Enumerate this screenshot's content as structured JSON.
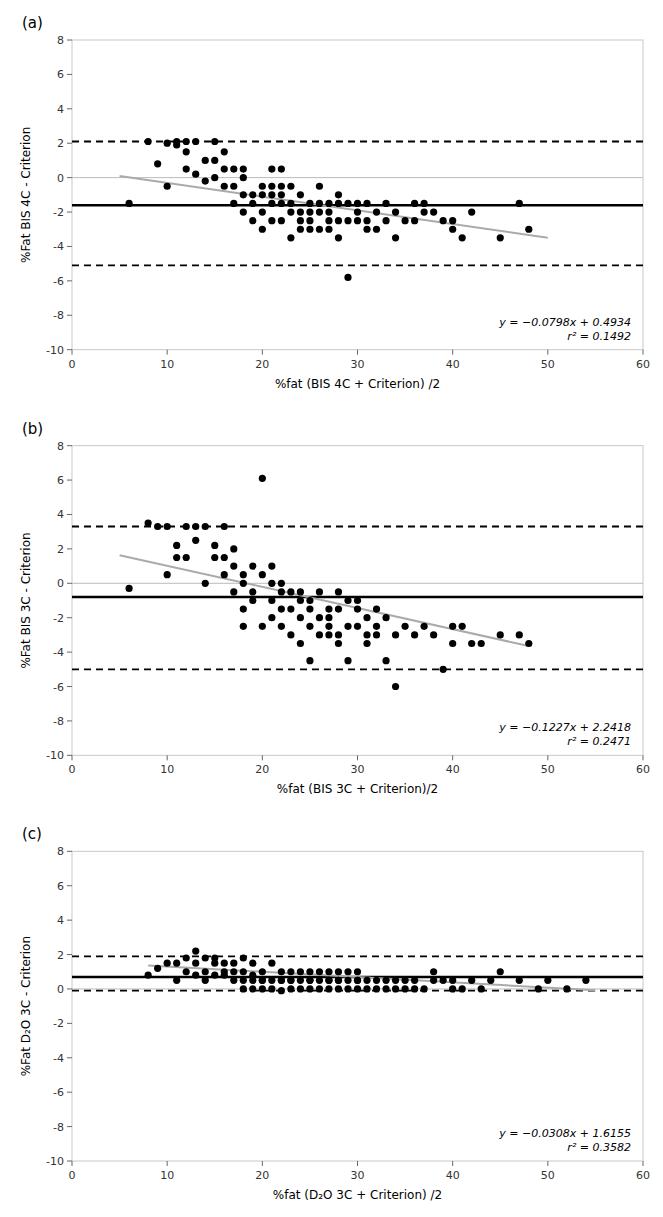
{
  "chart_data": [
    {
      "type": "scatter",
      "title": "(a)",
      "xlabel": "%fat (BIS 4C + Criterion) /2",
      "ylabel": "%Fat BIS 4C - Criterion",
      "annotation": "y = −0.0798x + 0.4934\nr² = 0.1492",
      "xlim": [
        0,
        60
      ],
      "ylim": [
        -10,
        8
      ],
      "xticks": [
        0,
        10,
        20,
        30,
        40,
        50,
        60
      ],
      "yticks": [
        -10,
        -8,
        -6,
        -4,
        -2,
        0,
        2,
        4,
        6,
        8
      ],
      "grid": false,
      "reference_lines": [
        {
          "value": 0,
          "color": "#bbbbbb",
          "line_style": "solid"
        },
        {
          "value": -1.6,
          "color": "#000000",
          "line_style": "solid"
        },
        {
          "value": 2.1,
          "color": "#000000",
          "line_style": "dashed"
        },
        {
          "value": -5.1,
          "color": "#000000",
          "line_style": "dashed"
        }
      ],
      "series": [
        {
          "type": "scatter",
          "color": "#000000",
          "marker": "circle",
          "x": [
            6,
            8,
            9,
            10,
            10,
            11,
            11,
            12,
            12,
            12,
            13,
            13,
            14,
            14,
            15,
            15,
            15,
            16,
            16,
            16,
            17,
            17,
            17,
            18,
            18,
            18,
            18,
            19,
            19,
            19,
            20,
            20,
            20,
            20,
            21,
            21,
            21,
            21,
            21,
            22,
            22,
            22,
            22,
            22,
            23,
            23,
            23,
            23,
            24,
            24,
            24,
            24,
            25,
            25,
            25,
            25,
            26,
            26,
            26,
            26,
            27,
            27,
            27,
            27,
            28,
            28,
            28,
            28,
            29,
            29,
            29,
            30,
            30,
            30,
            31,
            31,
            31,
            32,
            32,
            33,
            33,
            34,
            34,
            35,
            36,
            36,
            37,
            37,
            38,
            39,
            40,
            40,
            41,
            42,
            45,
            47,
            48
          ],
          "values": [
            -1.5,
            2.1,
            0.8,
            -0.5,
            2.0,
            2.1,
            1.9,
            1.5,
            0.5,
            2.1,
            2.1,
            0.2,
            -0.2,
            1.0,
            1.0,
            2.1,
            0.0,
            -0.5,
            0.5,
            1.5,
            -0.5,
            -1.5,
            0.5,
            -1.0,
            -2.0,
            0.0,
            0.5,
            -1.0,
            -2.5,
            -1.5,
            -3.0,
            -2.0,
            -1.0,
            -0.5,
            -1.5,
            -2.5,
            -1.0,
            0.5,
            -0.5,
            -1.5,
            -2.5,
            -0.5,
            0.5,
            -1.0,
            -2.0,
            -3.5,
            -1.5,
            -0.5,
            -2.0,
            -1.0,
            -2.5,
            -3.0,
            -1.5,
            -2.0,
            -3.0,
            -2.5,
            -2.0,
            -3.0,
            -1.5,
            -0.5,
            -2.5,
            -1.5,
            -2.0,
            -3.0,
            -1.5,
            -2.5,
            -3.5,
            -1.0,
            -2.5,
            -1.5,
            -5.8,
            -2.0,
            -1.5,
            -2.5,
            -2.5,
            -3.0,
            -1.5,
            -2.0,
            -3.0,
            -2.5,
            -1.5,
            -2.0,
            -3.5,
            -2.5,
            -2.5,
            -1.5,
            -2.0,
            -1.5,
            -2.0,
            -2.5,
            -3.0,
            -2.5,
            -3.5,
            -2.0,
            -3.5,
            -1.5,
            -3.0
          ]
        },
        {
          "type": "line",
          "color": "#aaaaaa",
          "line_style": "solid",
          "x": [
            5,
            50
          ],
          "values": [
            0.0944,
            -3.4966
          ]
        }
      ]
    },
    {
      "type": "scatter",
      "title": "(b)",
      "xlabel": "%fat (BIS 3C + Criterion)/2",
      "ylabel": "%Fat BIS 3C - Criterion",
      "annotation": "y = −0.1227x + 2.2418\nr² = 0.2471",
      "xlim": [
        0,
        60
      ],
      "ylim": [
        -10,
        8
      ],
      "xticks": [
        0,
        10,
        20,
        30,
        40,
        50,
        60
      ],
      "yticks": [
        -10,
        -8,
        -6,
        -4,
        -2,
        0,
        2,
        4,
        6,
        8
      ],
      "grid": false,
      "reference_lines": [
        {
          "value": 0,
          "color": "#bbbbbb",
          "line_style": "solid"
        },
        {
          "value": -0.8,
          "color": "#000000",
          "line_style": "solid"
        },
        {
          "value": 3.3,
          "color": "#000000",
          "line_style": "dashed"
        },
        {
          "value": -5.0,
          "color": "#000000",
          "line_style": "dashed"
        }
      ],
      "series": [
        {
          "type": "scatter",
          "color": "#000000",
          "marker": "circle",
          "x": [
            6,
            8,
            9,
            10,
            10,
            11,
            11,
            12,
            12,
            13,
            13,
            14,
            14,
            15,
            15,
            16,
            16,
            16,
            17,
            17,
            17,
            18,
            18,
            18,
            18,
            19,
            19,
            19,
            20,
            20,
            20,
            21,
            21,
            21,
            21,
            22,
            22,
            22,
            22,
            23,
            23,
            23,
            24,
            24,
            24,
            24,
            25,
            25,
            25,
            25,
            26,
            26,
            26,
            27,
            27,
            27,
            27,
            28,
            28,
            28,
            28,
            29,
            29,
            29,
            30,
            30,
            30,
            31,
            31,
            31,
            32,
            32,
            32,
            33,
            33,
            34,
            34,
            35,
            36,
            37,
            38,
            39,
            40,
            40,
            41,
            42,
            43,
            45,
            47,
            48
          ],
          "values": [
            -0.3,
            3.5,
            3.3,
            3.3,
            0.5,
            1.5,
            2.2,
            3.3,
            1.5,
            3.3,
            2.5,
            3.3,
            0.0,
            1.5,
            2.2,
            1.5,
            3.3,
            0.5,
            2.0,
            1.0,
            -0.5,
            0.0,
            -1.5,
            -2.5,
            0.5,
            -0.5,
            1.0,
            -1.0,
            0.5,
            6.1,
            -2.5,
            0.0,
            -1.0,
            1.0,
            -2.0,
            -1.5,
            -2.5,
            0.0,
            -0.5,
            -1.5,
            -3.0,
            -0.5,
            -1.0,
            -2.0,
            -3.5,
            -0.5,
            -1.5,
            -2.5,
            -4.5,
            -1.0,
            -0.5,
            -2.0,
            -3.0,
            -2.0,
            -1.5,
            -3.0,
            -2.5,
            -1.5,
            -3.0,
            -3.5,
            -0.5,
            -1.0,
            -2.5,
            -4.5,
            -1.5,
            -2.5,
            -1.0,
            -3.0,
            -3.5,
            -2.0,
            -2.5,
            -1.5,
            -3.0,
            -2.0,
            -4.5,
            -3.0,
            -6.0,
            -2.5,
            -3.0,
            -2.5,
            -3.0,
            -5.0,
            -2.5,
            -3.5,
            -2.5,
            -3.5,
            -3.5,
            -3.0,
            -3.0,
            -3.5
          ]
        },
        {
          "type": "line",
          "color": "#aaaaaa",
          "line_style": "solid",
          "x": [
            5,
            48
          ],
          "values": [
            1.6283,
            -3.6478
          ]
        }
      ]
    },
    {
      "type": "scatter",
      "title": "(c)",
      "xlabel": "%fat (D₂O 3C + Criterion) /2",
      "ylabel": "%Fat D₂O 3C - Criterion",
      "annotation": "y = −0.0308x + 1.6155\nr² = 0.3582",
      "xlim": [
        0,
        60
      ],
      "ylim": [
        -10,
        8
      ],
      "xticks": [
        0,
        10,
        20,
        30,
        40,
        50,
        60
      ],
      "yticks": [
        -10,
        -8,
        -6,
        -4,
        -2,
        0,
        2,
        4,
        6,
        8
      ],
      "grid": false,
      "reference_lines": [
        {
          "value": 0,
          "color": "#bbbbbb",
          "line_style": "solid"
        },
        {
          "value": 0.7,
          "color": "#000000",
          "line_style": "solid"
        },
        {
          "value": 1.9,
          "color": "#000000",
          "line_style": "dashed"
        },
        {
          "value": -0.1,
          "color": "#000000",
          "line_style": "dashed"
        }
      ],
      "series": [
        {
          "type": "scatter",
          "color": "#000000",
          "marker": "circle",
          "x": [
            8,
            9,
            10,
            11,
            11,
            12,
            12,
            13,
            13,
            13,
            14,
            14,
            14,
            15,
            15,
            15,
            16,
            16,
            16,
            17,
            17,
            17,
            18,
            18,
            18,
            18,
            19,
            19,
            19,
            19,
            20,
            20,
            20,
            20,
            21,
            21,
            21,
            22,
            22,
            22,
            22,
            23,
            23,
            23,
            23,
            24,
            24,
            24,
            25,
            25,
            25,
            25,
            26,
            26,
            26,
            27,
            27,
            27,
            27,
            28,
            28,
            28,
            28,
            29,
            29,
            29,
            30,
            30,
            30,
            30,
            31,
            31,
            32,
            32,
            33,
            33,
            34,
            34,
            35,
            35,
            36,
            36,
            37,
            38,
            38,
            39,
            40,
            40,
            41,
            42,
            43,
            44,
            45,
            47,
            49,
            50,
            52,
            54
          ],
          "values": [
            0.8,
            1.2,
            1.5,
            1.5,
            0.5,
            1.8,
            1.0,
            2.2,
            1.5,
            0.8,
            1.8,
            1.0,
            0.5,
            1.5,
            0.8,
            1.8,
            1.0,
            1.5,
            0.8,
            1.0,
            0.5,
            1.5,
            0.0,
            1.0,
            1.8,
            0.5,
            0.8,
            0.0,
            1.5,
            0.5,
            0.5,
            0.0,
            1.0,
            0.5,
            0.5,
            1.5,
            0.0,
            -0.1,
            0.5,
            1.0,
            0.5,
            0.0,
            0.5,
            1.0,
            0.5,
            0.0,
            1.0,
            0.5,
            0.5,
            0.0,
            1.0,
            0.5,
            0.0,
            0.5,
            1.0,
            0.0,
            0.5,
            1.0,
            0.5,
            0.5,
            0.0,
            0.5,
            1.0,
            0.0,
            0.5,
            1.0,
            0.5,
            0.0,
            0.5,
            1.0,
            0.0,
            0.5,
            0.0,
            0.5,
            0.0,
            0.5,
            0.0,
            0.5,
            0.0,
            0.5,
            0.0,
            0.5,
            0.0,
            0.5,
            1.0,
            0.5,
            0.0,
            0.5,
            0.0,
            0.5,
            0.0,
            0.5,
            1.0,
            0.5,
            0.0,
            0.5,
            0.0,
            0.5
          ]
        },
        {
          "type": "line",
          "color": "#aaaaaa",
          "line_style": "solid",
          "x": [
            8,
            55
          ],
          "values": [
            1.3691,
            -0.0785
          ]
        }
      ]
    }
  ]
}
